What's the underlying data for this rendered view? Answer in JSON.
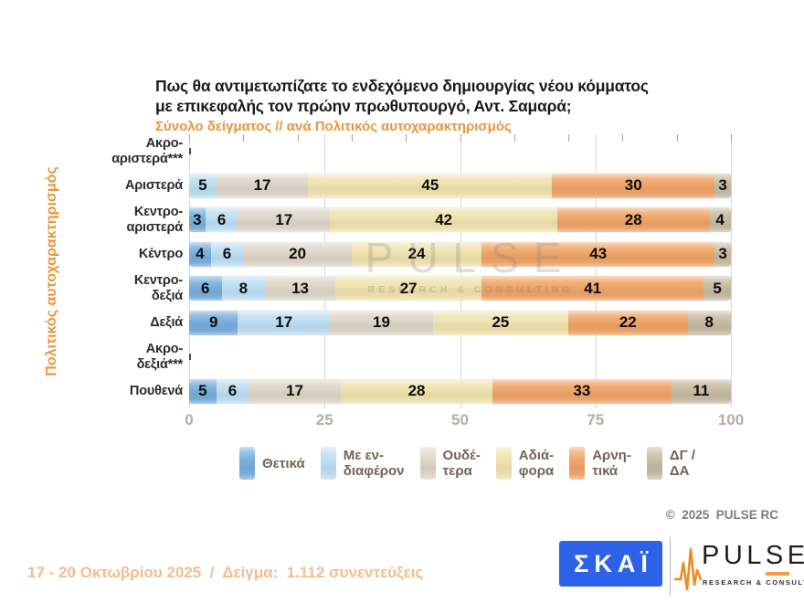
{
  "title": {
    "line1": "Πως θα αντιμετωπίζατε το ενδεχόμενο δημιουργίας νέου κόμματος",
    "line2": "με επικεφαλής τον πρώην πρωθυπουργό, Αντ. Σαμαρά;",
    "subtitle": "Σύνολο δείγματος // ανά Πολιτικός αυτοχαρακτηρισμός"
  },
  "y_axis_title": "Πολιτικός αυτοχαρακτηρισμός",
  "colors": {
    "accent_orange": "#e8963c",
    "positive_blue": "#79afdc",
    "interested_lightblue": "#bddef3",
    "neutral_beige": "#ddd6c8",
    "indifferent_yellow": "#efe3af",
    "negative_orange": "#efa569",
    "dk_tan": "#c7bca3",
    "skai_blue": "#2d62e8",
    "grid_grey": "#d9d7d2",
    "tick_text_grey": "#b3afa7"
  },
  "chart_data": {
    "type": "bar",
    "stacked": true,
    "orientation": "horizontal",
    "xlim": [
      0,
      100
    ],
    "x_ticks": [
      0,
      25,
      50,
      75,
      100
    ],
    "minor_tick_step": 10,
    "grid": true,
    "legend_position": "bottom",
    "ylabel": "Πολιτικός αυτοχαρακτηρισμός",
    "categories": [
      {
        "lines": [
          "Ακρο-",
          "αριστερά***"
        ],
        "empty": true
      },
      {
        "lines": [
          "Αριστερά"
        ],
        "empty": false
      },
      {
        "lines": [
          "Κεντρο-",
          "αριστερά"
        ],
        "empty": false
      },
      {
        "lines": [
          "Κέντρο"
        ],
        "empty": false
      },
      {
        "lines": [
          "Κεντρο-",
          "δεξιά"
        ],
        "empty": false
      },
      {
        "lines": [
          "Δεξιά"
        ],
        "empty": false
      },
      {
        "lines": [
          "Ακρο-",
          "δεξιά***"
        ],
        "empty": true
      },
      {
        "lines": [
          "Πουθενά"
        ],
        "empty": false
      }
    ],
    "series": [
      {
        "name": "Θετικά",
        "color": "#79afdc",
        "values": [
          null,
          0,
          3,
          4,
          6,
          9,
          null,
          5
        ]
      },
      {
        "name": "Με ενδιαφέρον",
        "color": "#bddef3",
        "values": [
          null,
          5,
          6,
          6,
          8,
          17,
          null,
          6
        ]
      },
      {
        "name": "Ουδέτερα",
        "color": "#ddd6c8",
        "values": [
          null,
          17,
          17,
          20,
          13,
          19,
          null,
          17
        ]
      },
      {
        "name": "Αδιάφορα",
        "color": "#efe3af",
        "values": [
          null,
          45,
          42,
          24,
          27,
          25,
          null,
          28
        ]
      },
      {
        "name": "Αρνητικά",
        "color": "#efa569",
        "values": [
          null,
          30,
          28,
          43,
          41,
          22,
          null,
          33
        ]
      },
      {
        "name": "ΔΓ / ΔΑ",
        "color": "#c7bca3",
        "values": [
          null,
          3,
          4,
          3,
          5,
          8,
          null,
          11
        ]
      }
    ]
  },
  "legend": [
    {
      "lines": [
        "Θετικά"
      ],
      "color": "#79afdc"
    },
    {
      "lines": [
        "Με εν-",
        "διαφέρον"
      ],
      "color": "#bddef3"
    },
    {
      "lines": [
        "Ουδέ-",
        "τερα"
      ],
      "color": "#ddd6c8"
    },
    {
      "lines": [
        "Αδιά-",
        "φορα"
      ],
      "color": "#efe3af"
    },
    {
      "lines": [
        "Αρνη-",
        "τικά"
      ],
      "color": "#efa569"
    },
    {
      "lines": [
        "ΔΓ /",
        "ΔΑ"
      ],
      "color": "#c7bca3"
    }
  ],
  "watermark": {
    "line1": "PULSE",
    "line2": "RESEARCH & CONSULTING"
  },
  "copyright": "©  2025  PULSE RC",
  "footer": {
    "survey_info": "17 - 20 Οκτωβρίου 2025  /  Δείγμα:  1.112 συνεντεύξεις"
  },
  "logos": {
    "skai": "ΣΚΑΪ",
    "pulse": "PULSE",
    "pulse_tagline": "RESEARCH & CONSULTING"
  }
}
